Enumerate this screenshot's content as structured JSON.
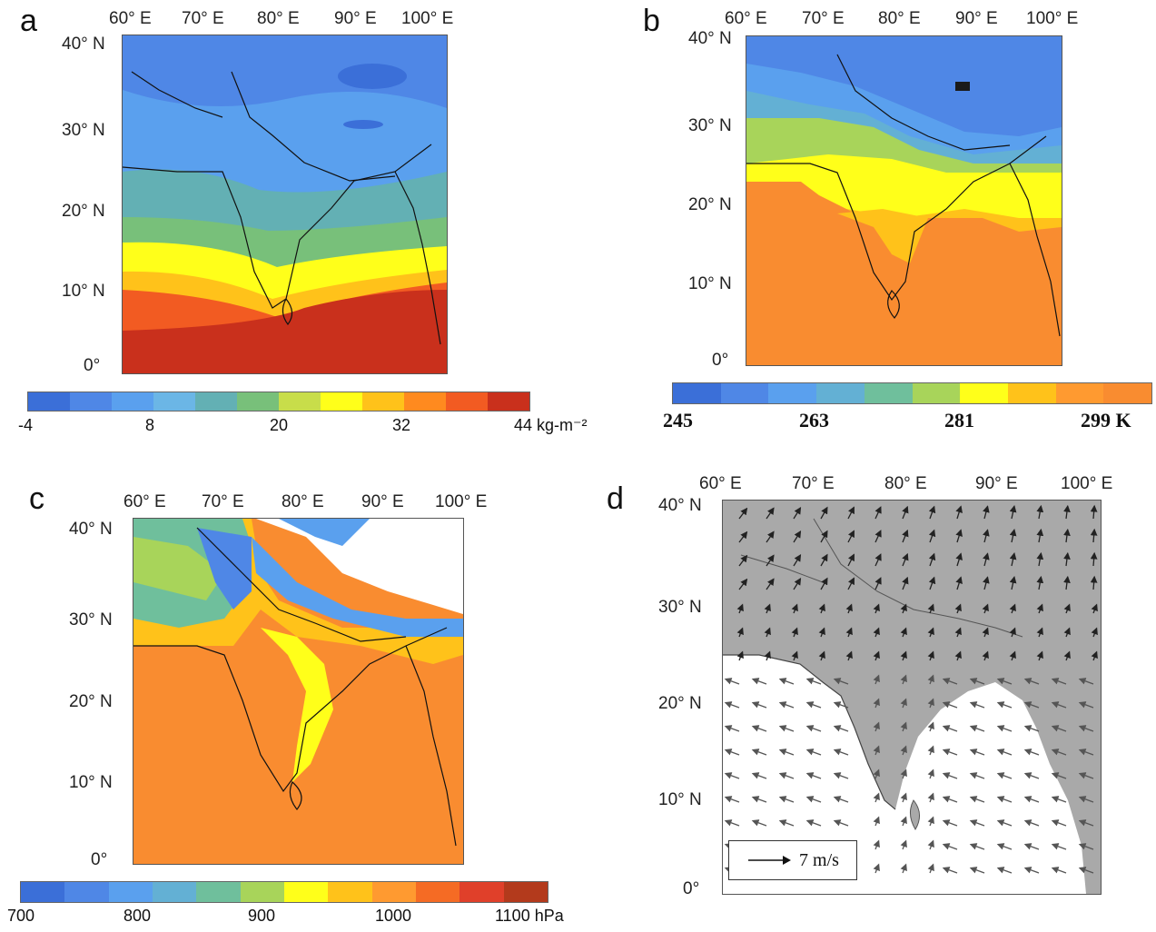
{
  "colors": {
    "cbar_a": [
      "#3b6fd8",
      "#4f87e6",
      "#5aa0ee",
      "#6bb6e6",
      "#63b0b4",
      "#78c07a",
      "#c8dd4a",
      "#ffff1a",
      "#ffc21a",
      "#ff8a1f",
      "#f25b22",
      "#c9301c"
    ],
    "cbar_b": [
      "#3b6fd8",
      "#4f87e6",
      "#5aa0ee",
      "#63b0d4",
      "#6fbf9c",
      "#a8d45a",
      "#ffff1a",
      "#ffc21a",
      "#ff9a30",
      "#f98c30"
    ],
    "cbar_c": [
      "#3b6fd8",
      "#4f87e6",
      "#5aa0ee",
      "#63b0d4",
      "#6fbf9c",
      "#a8d45a",
      "#ffff1a",
      "#ffc21a",
      "#ff9a30",
      "#f56b24",
      "#e0402a",
      "#b33a1c"
    ],
    "land": "#a9a9a9",
    "ocean": "#ffffff"
  },
  "panels": {
    "a": {
      "label": "a",
      "top_ticks": [
        "60° E",
        "70° E",
        "80° E",
        "90° E",
        "100° E"
      ],
      "left_ticks": [
        "40° N",
        "30° N",
        "20° N",
        "10° N",
        "0°"
      ],
      "colorbar_labels": [
        "-4",
        "8",
        "20",
        "32",
        "44 kg-m⁻²"
      ]
    },
    "b": {
      "label": "b",
      "top_ticks": [
        "60° E",
        "70° E",
        "80° E",
        "90° E",
        "100° E"
      ],
      "left_ticks": [
        "40° N",
        "30° N",
        "20° N",
        "10° N",
        "0°"
      ],
      "colorbar_labels": [
        "245",
        "263",
        "281",
        "299 K"
      ]
    },
    "c": {
      "label": "c",
      "top_ticks": [
        "60° E",
        "70° E",
        "80° E",
        "90° E",
        "100° E"
      ],
      "left_ticks": [
        "40° N",
        "30° N",
        "20° N",
        "10° N",
        "0°"
      ],
      "colorbar_labels": [
        "700",
        "800",
        "900",
        "1000",
        "1100 hPa"
      ]
    },
    "d": {
      "label": "d",
      "top_ticks": [
        "60° E",
        "70° E",
        "80° E",
        "90° E",
        "100° E"
      ],
      "left_ticks": [
        "40° N",
        "30° N",
        "20° N",
        "10° N",
        "0°"
      ],
      "reference_vector_label": "7 m/s"
    }
  }
}
